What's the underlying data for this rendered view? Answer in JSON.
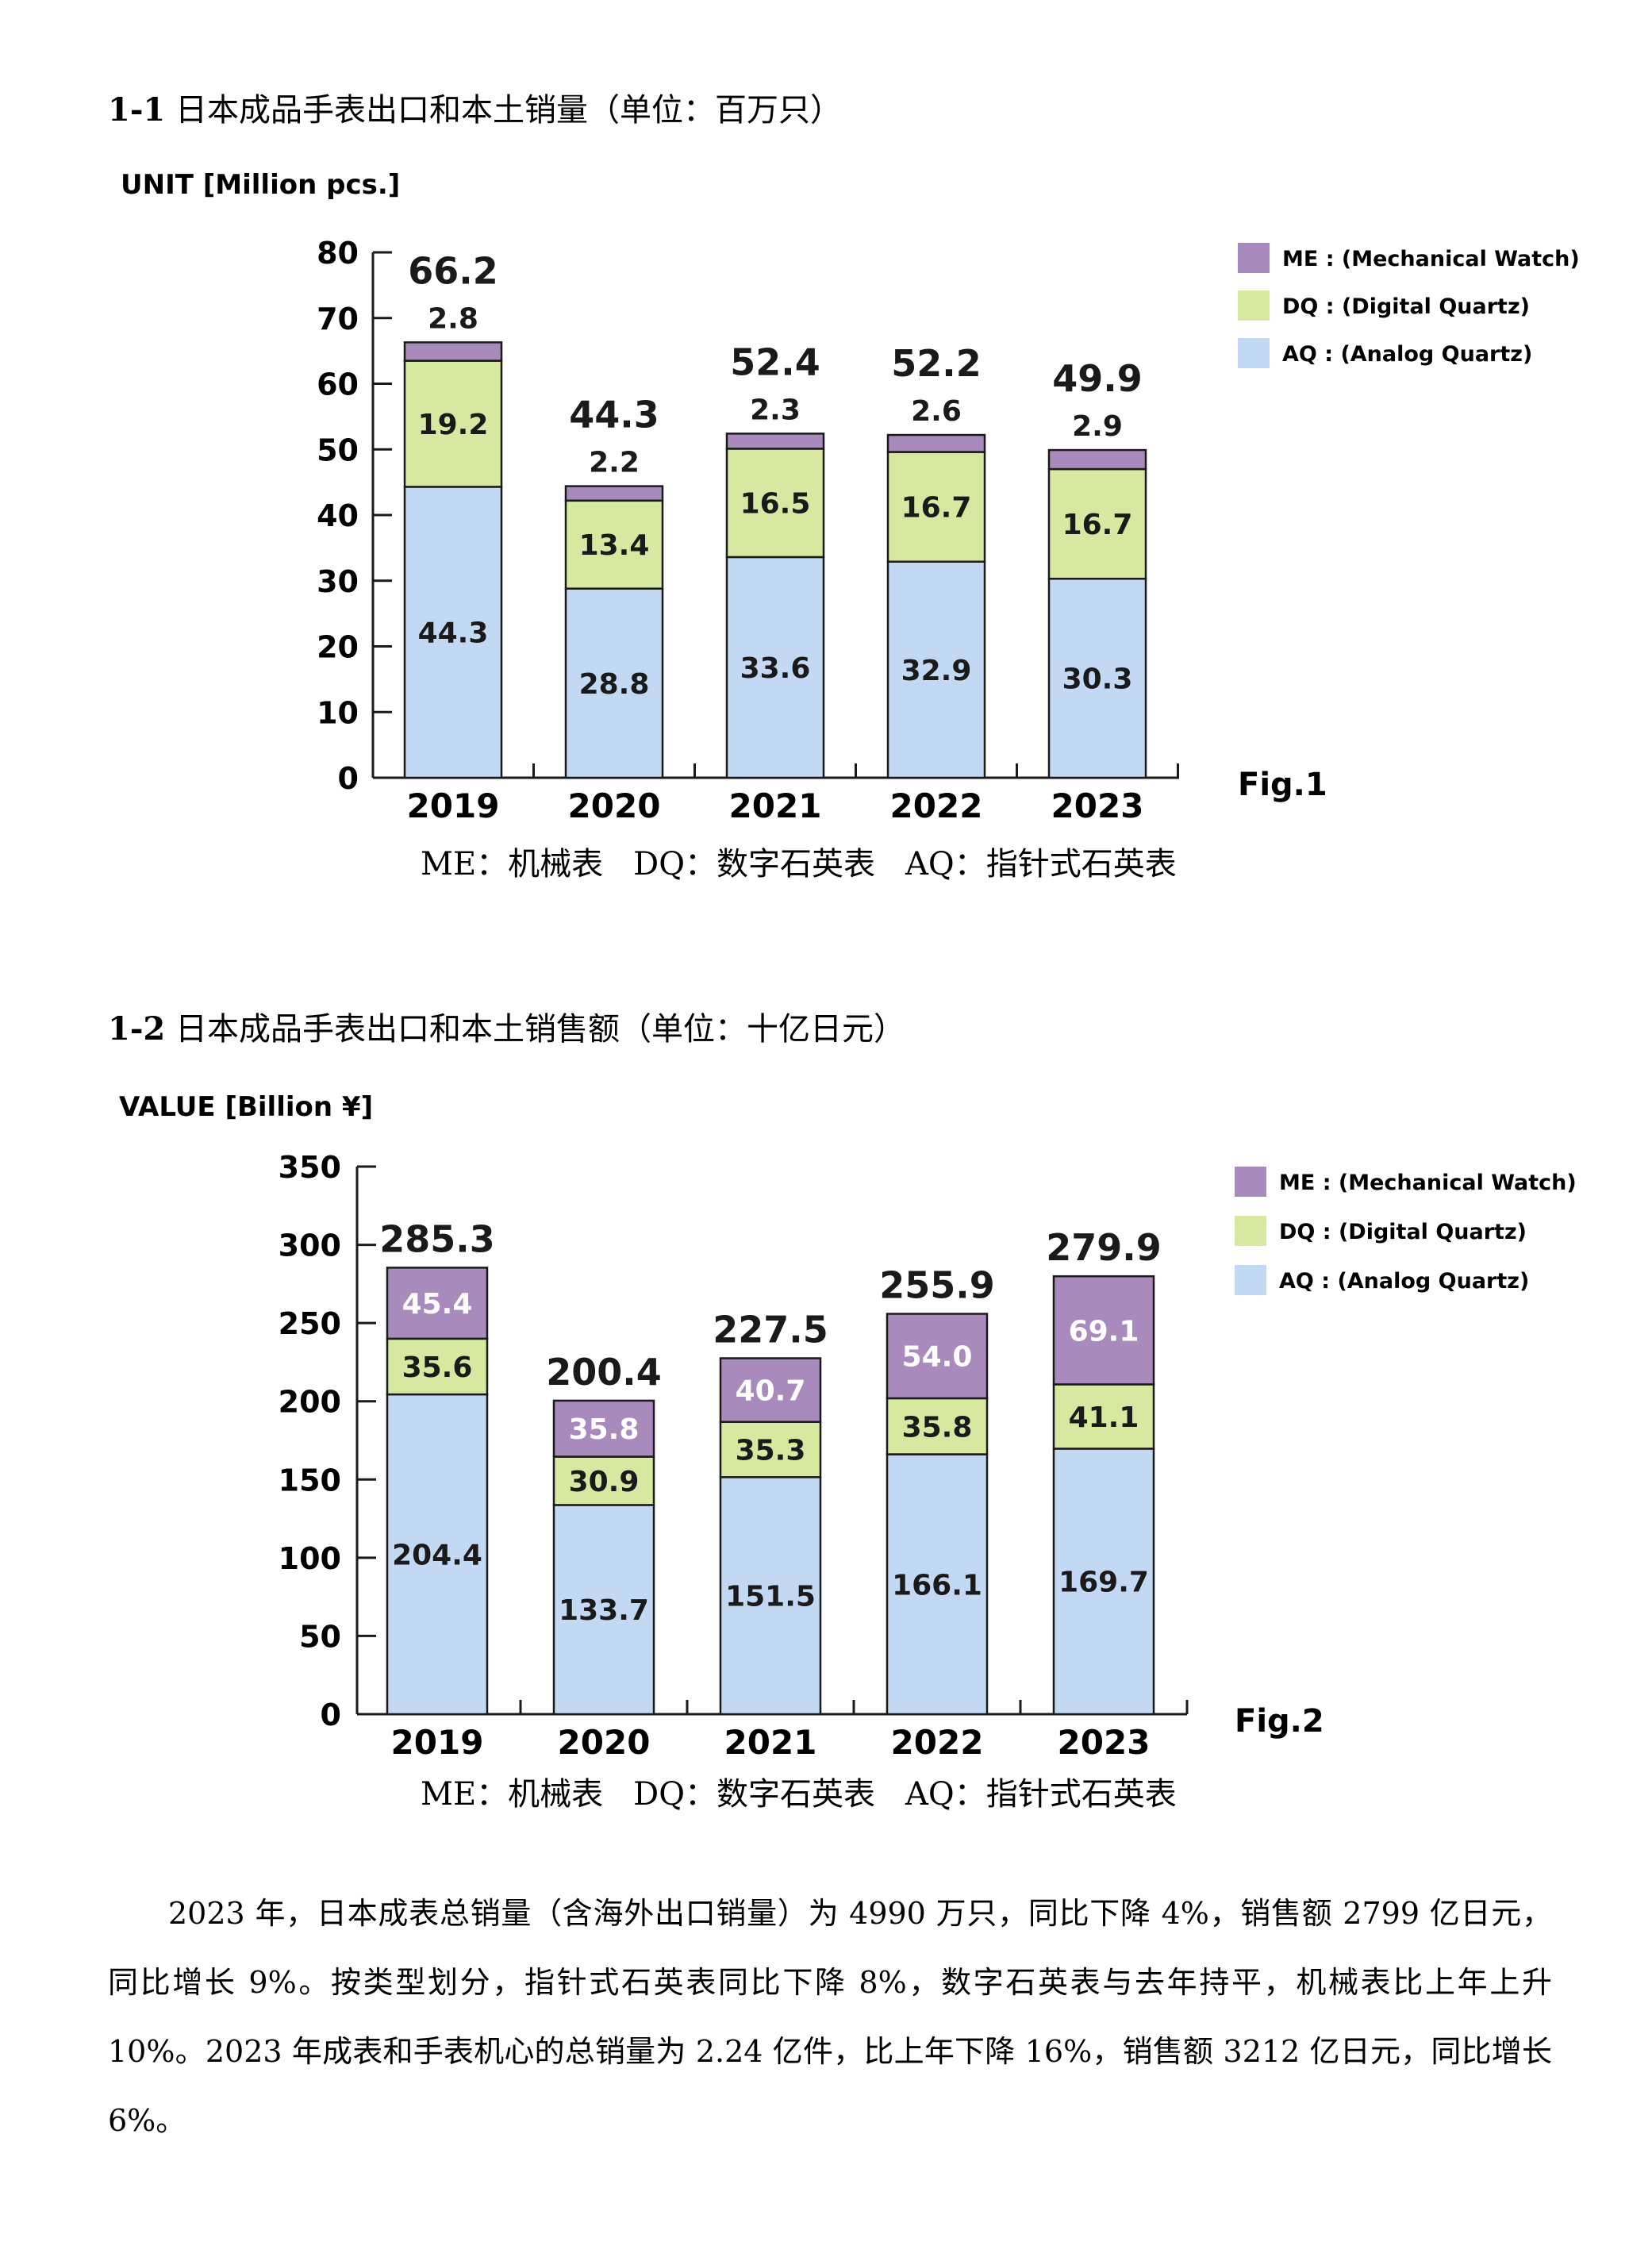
{
  "colors": {
    "ME": "#a88abd",
    "DQ": "#d7e9a1",
    "AQ": "#c3d9f3",
    "axis": "#1a1a1a"
  },
  "section1": {
    "number": "1-1",
    "title": "日本成品手表出口和本土销量（单位：百万只）"
  },
  "section2": {
    "number": "1-2",
    "title": "日本成品手表出口和本土销售额（单位：十亿日元）"
  },
  "legend_abbreviations": {
    "me": "ME：机械表",
    "dq": "DQ：数字石英表",
    "aq": "AQ：指针式石英表"
  },
  "chart_data": [
    {
      "type": "bar",
      "stacked": true,
      "ylabel": "UNIT [Million pcs.]",
      "figure_label": "Fig.1",
      "ylim": [
        0,
        80
      ],
      "yticks": [
        "0",
        "10",
        "20",
        "30",
        "40",
        "50",
        "60",
        "70",
        "80"
      ],
      "categories": [
        "2019",
        "2020",
        "2021",
        "2022",
        "2023"
      ],
      "totals": [
        "66.2",
        "44.3",
        "52.4",
        "52.2",
        "49.9"
      ],
      "series": [
        {
          "key": "AQ",
          "name": "AQ : (Analog Quartz)",
          "values": [
            44.3,
            28.8,
            33.6,
            32.9,
            30.3
          ],
          "labels": [
            "44.3",
            "28.8",
            "33.6",
            "32.9",
            "30.3"
          ]
        },
        {
          "key": "DQ",
          "name": "DQ : (Digital Quartz)",
          "values": [
            19.2,
            13.4,
            16.5,
            16.7,
            16.7
          ],
          "labels": [
            "19.2",
            "13.4",
            "16.5",
            "16.7",
            "16.7"
          ]
        },
        {
          "key": "ME",
          "name": "ME : (Mechanical Watch)",
          "values": [
            2.8,
            2.2,
            2.3,
            2.6,
            2.9
          ],
          "labels": [
            "2.8",
            "2.2",
            "2.3",
            "2.6",
            "2.9"
          ]
        }
      ],
      "legend_position": "top-right"
    },
    {
      "type": "bar",
      "stacked": true,
      "ylabel": "VALUE [Billion ¥]",
      "figure_label": "Fig.2",
      "ylim": [
        0,
        350
      ],
      "yticks": [
        "0",
        "50",
        "100",
        "150",
        "200",
        "250",
        "300",
        "350"
      ],
      "categories": [
        "2019",
        "2020",
        "2021",
        "2022",
        "2023"
      ],
      "totals": [
        "285.3",
        "200.4",
        "227.5",
        "255.9",
        "279.9"
      ],
      "series": [
        {
          "key": "AQ",
          "name": "AQ : (Analog Quartz)",
          "values": [
            204.4,
            133.7,
            151.5,
            166.1,
            169.7
          ],
          "labels": [
            "204.4",
            "133.7",
            "151.5",
            "166.1",
            "169.7"
          ]
        },
        {
          "key": "DQ",
          "name": "DQ : (Digital Quartz)",
          "values": [
            35.6,
            30.9,
            35.3,
            35.8,
            41.1
          ],
          "labels": [
            "35.6",
            "30.9",
            "35.3",
            "35.8",
            "41.1"
          ]
        },
        {
          "key": "ME",
          "name": "ME : (Mechanical Watch)",
          "values": [
            45.4,
            35.8,
            40.7,
            54.0,
            69.1
          ],
          "labels": [
            "45.4",
            "35.8",
            "40.7",
            "54.0",
            "69.1"
          ]
        }
      ],
      "legend_position": "top-right"
    }
  ],
  "paragraph": "2023 年，日本成表总销量（含海外出口销量）为 4990 万只，同比下降 4%，销售额 2799 亿日元，同比增长 9%。按类型划分，指针式石英表同比下降 8%，数字石英表与去年持平，机械表比上年上升 10%。2023 年成表和手表机心的总销量为 2.24 亿件，比上年下降 16%，销售额 3212 亿日元，同比增长 6%。"
}
